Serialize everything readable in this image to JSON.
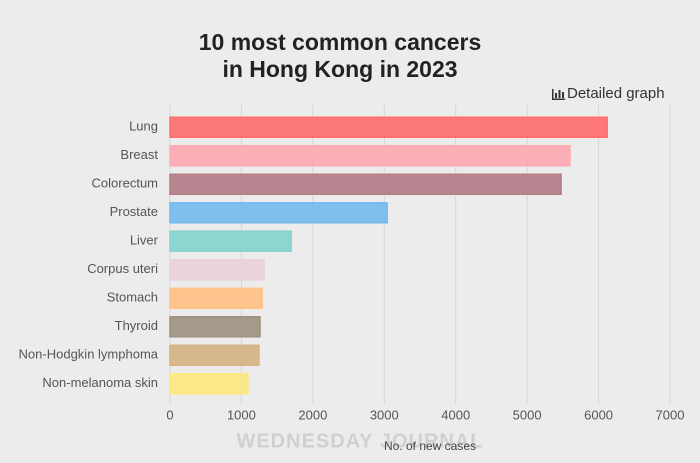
{
  "chart_data": {
    "type": "bar",
    "orientation": "horizontal",
    "title": [
      "10 most common cancers",
      "in Hong Kong in 2023"
    ],
    "link_text": "Detailed graph",
    "x_label": "No. of new cases",
    "watermark": "WEDNESDAY JOURNAL",
    "categories": [
      "Lung",
      "Breast",
      "Colorectum",
      "Prostate",
      "Liver",
      "Corpus uteri",
      "Stomach",
      "Thyroid",
      "Non-Hodgkin lymphoma",
      "Non-melanoma skin"
    ],
    "values": [
      6120,
      5600,
      5475,
      3040,
      1695,
      1315,
      1290,
      1260,
      1245,
      1090
    ],
    "colors": [
      "#ff6b6b",
      "#ffa9b1",
      "#b37b86",
      "#74b9ee",
      "#82d3cd",
      "#ebd0d8",
      "#ffc183",
      "#9d917f",
      "#d5b282",
      "#fde87d"
    ],
    "xlim": [
      0,
      7000
    ],
    "xticks": [
      0,
      1000,
      2000,
      3000,
      4000,
      5000,
      6000,
      7000
    ],
    "grid": true
  }
}
